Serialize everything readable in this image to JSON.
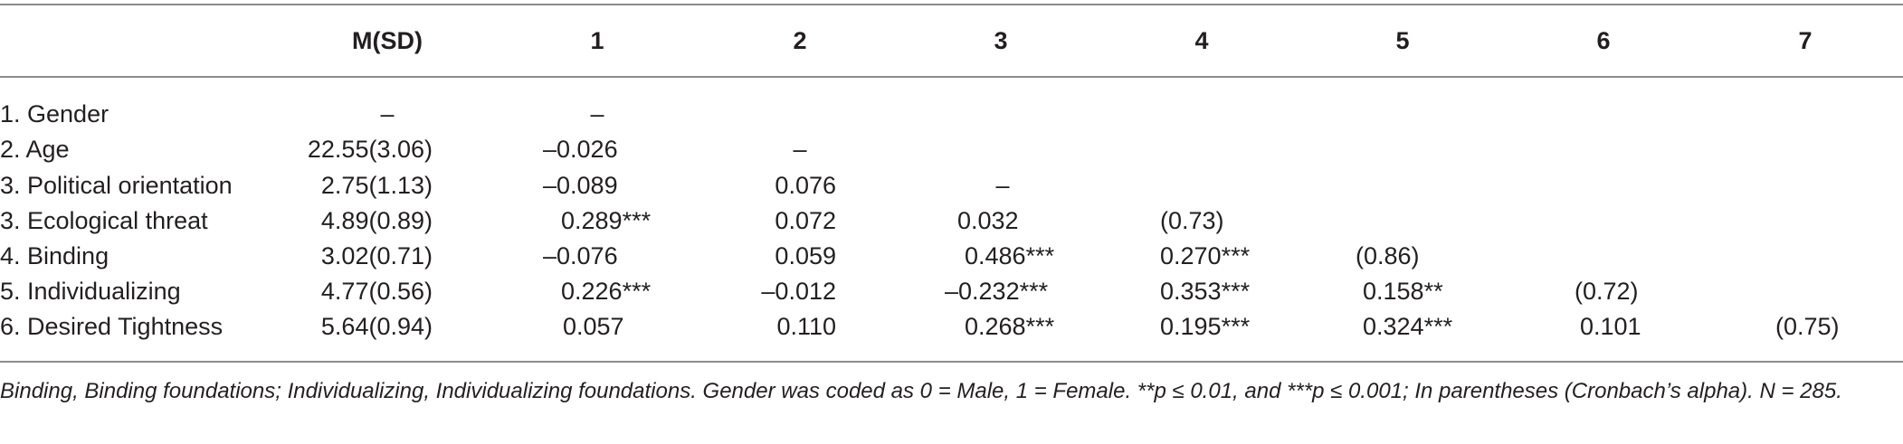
{
  "table": {
    "header": {
      "msd": "M(SD)",
      "c1": "1",
      "c2": "2",
      "c3": "3",
      "c4": "4",
      "c5": "5",
      "c6": "6",
      "c7": "7"
    },
    "rows": [
      {
        "label": "1. Gender",
        "msd": "–",
        "c1": "–",
        "c2": "",
        "c3": "",
        "c4": "",
        "c5": "",
        "c6": "",
        "c7": ""
      },
      {
        "label": "2. Age",
        "msd": "22.55(3.06)",
        "c1": "–0.026",
        "c2": "–",
        "c3": "",
        "c4": "",
        "c5": "",
        "c6": "",
        "c7": ""
      },
      {
        "label": "3. Political orientation",
        "msd": "2.75(1.13)",
        "c1": "–0.089",
        "c2": "0.076",
        "c3": "–",
        "c4": "",
        "c5": "",
        "c6": "",
        "c7": ""
      },
      {
        "label": "3. Ecological threat",
        "msd": "4.89(0.89)",
        "c1": "0.289***",
        "c2": "0.072",
        "c3": "0.032",
        "c4": "(0.73)",
        "c5": "",
        "c6": "",
        "c7": ""
      },
      {
        "label": "4. Binding",
        "msd": "3.02(0.71)",
        "c1": "–0.076",
        "c2": "0.059",
        "c3": "0.486***",
        "c4": "0.270***",
        "c5": "(0.86)",
        "c6": "",
        "c7": ""
      },
      {
        "label": "5. Individualizing",
        "msd": "4.77(0.56)",
        "c1": "0.226***",
        "c2": "–0.012",
        "c3": "–0.232***",
        "c4": "0.353***",
        "c5": "0.158**",
        "c6": "(0.72)",
        "c7": ""
      },
      {
        "label": "6. Desired Tightness",
        "msd": "5.64(0.94)",
        "c1": "0.057",
        "c2": "0.110",
        "c3": "0.268***",
        "c4": "0.195***",
        "c5": "0.324***",
        "c6": "0.101",
        "c7": "(0.75)"
      }
    ],
    "note": "Binding, Binding foundations; Individualizing, Individualizing foundations. Gender was coded as 0 = Male, 1 = Female. **p ≤ 0.01, and ***p ≤ 0.001; In parentheses (Cronbach’s alpha). N = 285."
  }
}
